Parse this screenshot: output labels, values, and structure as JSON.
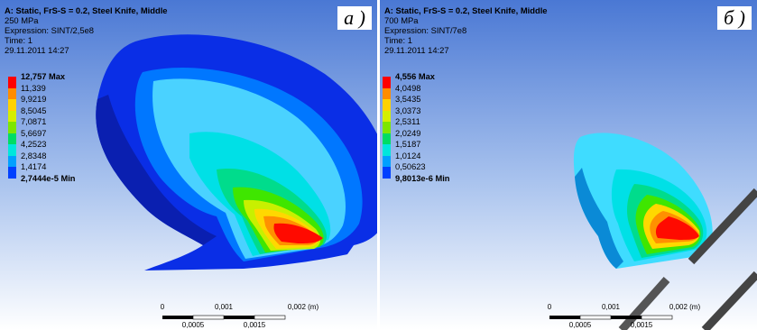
{
  "panels": [
    {
      "id": "a",
      "header": {
        "title": "A: Static, FrS-S = 0.2, Steel Knife, Middle",
        "stress": "250 MPa",
        "expression": "Expression: SINT/2,5e8",
        "time": "Time: 1",
        "date": "29.11.2011 14:27"
      },
      "letter": "а )",
      "legend": {
        "max_label": "12,757 Max",
        "labels": [
          "11,339",
          "9,9219",
          "8,5045",
          "7,0871",
          "5,6697",
          "4,2523",
          "2,8348",
          "1,4174"
        ],
        "min_label": "2,7444e-5 Min",
        "colors": [
          "#ff0000",
          "#ff8c00",
          "#ffd200",
          "#d5ee00",
          "#7de600",
          "#00dc64",
          "#00e6dc",
          "#00a0ff",
          "#0040ff"
        ]
      },
      "scalebar": {
        "top_labels": [
          "0",
          "0,001",
          "0,002 (m)"
        ],
        "bottom_labels": [
          "0,0005",
          "0,0015"
        ]
      }
    },
    {
      "id": "b",
      "header": {
        "title": "A: Static, FrS-S = 0.2, Steel Knife, Middle",
        "stress": "700 MPa",
        "expression": "Expression: SINT/7e8",
        "time": "Time: 1",
        "date": "29.11.2011 14:27"
      },
      "letter": "б )",
      "legend": {
        "max_label": "4,556 Max",
        "labels": [
          "4,0498",
          "3,5435",
          "3,0373",
          "2,5311",
          "2,0249",
          "1,5187",
          "1,0124",
          "0,50623"
        ],
        "min_label": "9,8013e-6 Min",
        "colors": [
          "#ff0000",
          "#ff8c00",
          "#ffd200",
          "#d5ee00",
          "#7de600",
          "#00dc64",
          "#00e6dc",
          "#00a0ff",
          "#0040ff"
        ]
      },
      "scalebar": {
        "top_labels": [
          "0",
          "0,001",
          "0,002 (m)"
        ],
        "bottom_labels": [
          "0,0005",
          "0,0015"
        ]
      }
    }
  ],
  "colors": {
    "background_top": "#4a78d4",
    "background_bottom": "#ffffff",
    "watermark": "#444444"
  }
}
